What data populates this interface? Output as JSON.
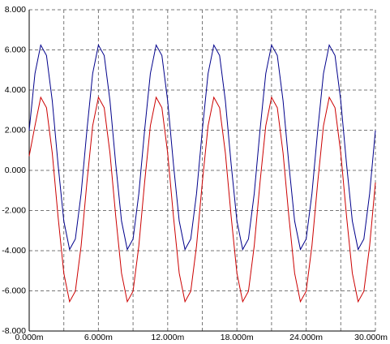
{
  "chart_data": {
    "type": "line",
    "x": [
      0,
      0.5,
      1,
      1.5,
      2,
      2.5,
      3,
      3.5,
      4,
      4.5,
      5,
      5.5,
      6,
      6.5,
      7,
      7.5,
      8,
      8.5,
      9,
      9.5,
      10,
      10.5,
      11,
      11.5,
      12,
      12.5,
      13,
      13.5,
      14,
      14.5,
      15,
      15.5,
      16,
      16.5,
      17,
      17.5,
      18,
      18.5,
      19,
      19.5,
      20,
      20.5,
      21,
      21.5,
      22,
      22.5,
      23,
      23.5,
      24,
      24.5,
      25,
      25.5,
      26,
      26.5,
      27,
      27.5,
      28,
      28.5,
      29,
      29.5,
      30
    ],
    "series": [
      {
        "color": "#00008b",
        "values": [
          1.99,
          4.82,
          6.24,
          5.72,
          3.46,
          0.31,
          -2.52,
          -3.94,
          -3.42,
          -1.16,
          1.99,
          4.82,
          6.24,
          5.72,
          3.46,
          0.31,
          -2.52,
          -3.94,
          -3.42,
          -1.16,
          1.99,
          4.82,
          6.24,
          5.72,
          3.46,
          0.31,
          -2.52,
          -3.94,
          -3.42,
          -1.16,
          1.99,
          4.82,
          6.24,
          5.72,
          3.46,
          0.31,
          -2.52,
          -3.94,
          -3.42,
          -1.16,
          1.99,
          4.82,
          6.24,
          5.72,
          3.46,
          0.31,
          -2.52,
          -3.94,
          -3.42,
          -1.16,
          1.99,
          4.82,
          6.24,
          5.72,
          3.46,
          0.31,
          -2.52,
          -3.94,
          -3.42,
          -1.16,
          1.99
        ]
      },
      {
        "color": "#cc0000",
        "values": [
          0.71,
          2.22,
          3.64,
          3.12,
          0.86,
          -2.29,
          -5.12,
          -6.54,
          -6.02,
          -3.76,
          -0.61,
          2.22,
          3.64,
          3.12,
          0.86,
          -2.29,
          -5.12,
          -6.54,
          -6.02,
          -3.76,
          -0.61,
          2.22,
          3.64,
          3.12,
          0.86,
          -2.29,
          -5.12,
          -6.54,
          -6.02,
          -3.76,
          -0.61,
          2.22,
          3.64,
          3.12,
          0.86,
          -2.29,
          -5.12,
          -6.54,
          -6.02,
          -3.76,
          -0.61,
          2.22,
          3.64,
          3.12,
          0.86,
          -2.29,
          -5.12,
          -6.54,
          -6.02,
          -3.76,
          -0.61,
          2.22,
          3.64,
          3.12,
          0.86,
          -2.29,
          -5.12,
          -6.54,
          -6.02,
          -3.76,
          -0.61
        ]
      }
    ],
    "xlim": [
      0,
      30
    ],
    "ylim": [
      -8,
      8
    ],
    "xticks": [
      {
        "value": 0,
        "label": "0.000m"
      },
      {
        "value": 6,
        "label": "6.000m"
      },
      {
        "value": 12,
        "label": "12.000m"
      },
      {
        "value": 18,
        "label": "18.000m"
      },
      {
        "value": 24,
        "label": "24.000m"
      },
      {
        "value": 30,
        "label": "30.000m"
      }
    ],
    "xminor": [
      3,
      9,
      15,
      21,
      27
    ],
    "yticks": [
      {
        "value": 8,
        "label": "8.000"
      },
      {
        "value": 6,
        "label": "6.000"
      },
      {
        "value": 4,
        "label": "4.000"
      },
      {
        "value": 2,
        "label": "2.000"
      },
      {
        "value": 0,
        "label": "0.000"
      },
      {
        "value": -2,
        "label": "-2.000"
      },
      {
        "value": -4,
        "label": "-4.000"
      },
      {
        "value": -6,
        "label": "-6.000"
      },
      {
        "value": -8,
        "label": "-8.000"
      }
    ],
    "grid": true
  }
}
